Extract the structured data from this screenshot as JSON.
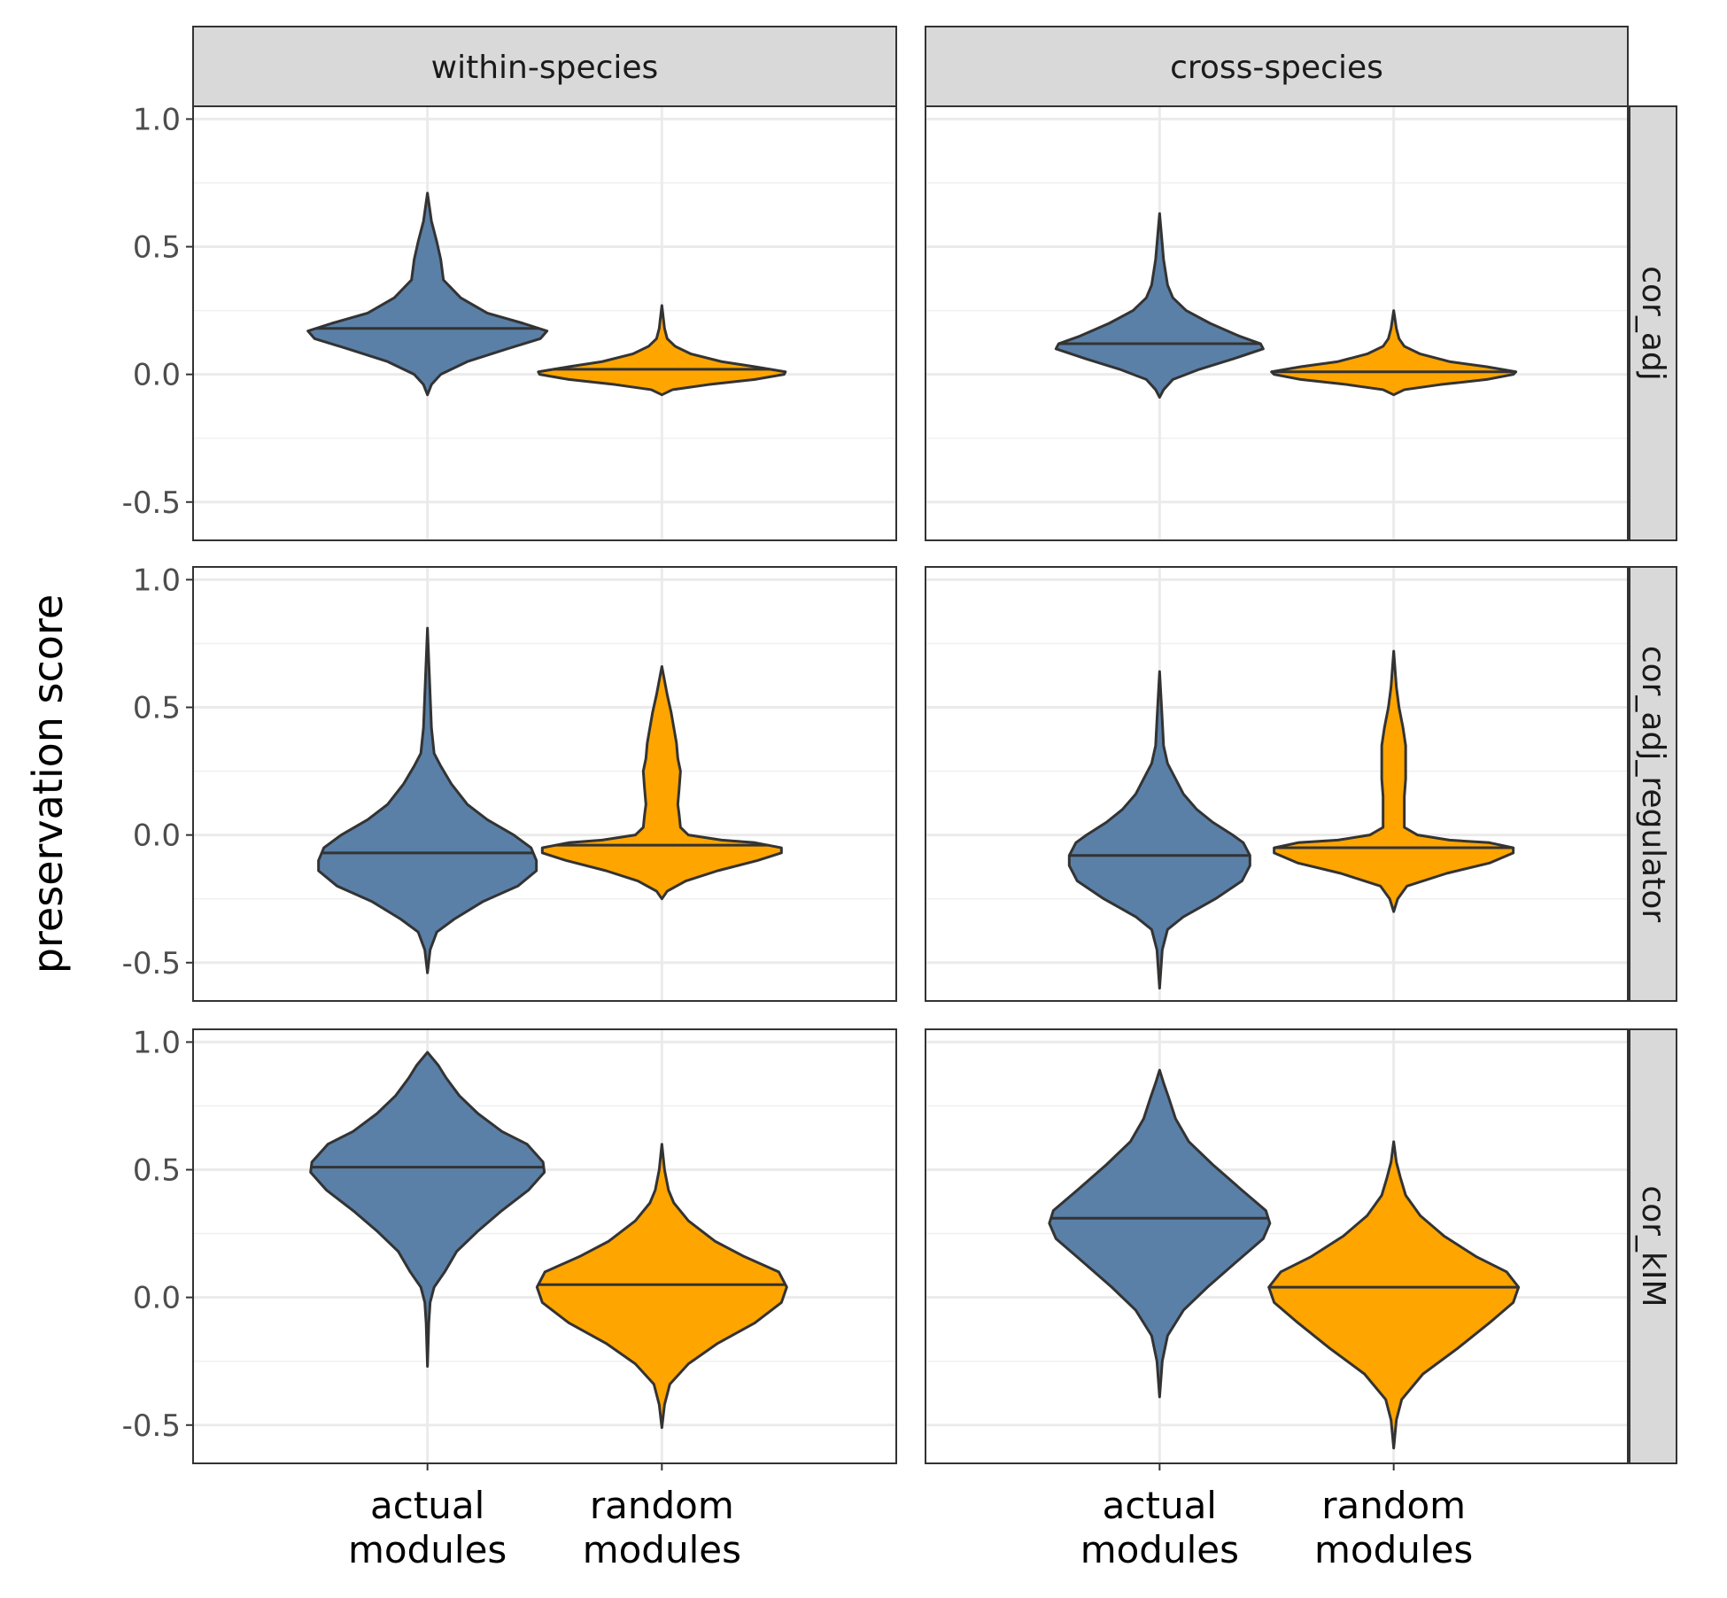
{
  "chart_data": {
    "type": "violin",
    "ylabel": "preservation score",
    "xlabel": "",
    "ylim": [
      -0.65,
      1.05
    ],
    "yticks": [
      -0.5,
      0.0,
      0.5,
      1.0
    ],
    "ytick_labels": [
      "-0.5",
      "0.0",
      "0.5",
      "1.0"
    ],
    "grid": true,
    "legend": "none",
    "columns": [
      "within-species",
      "cross-species"
    ],
    "rows": [
      "cor_adj",
      "cor_adj_regulator",
      "cor_kIM"
    ],
    "categories": [
      {
        "line1": "actual",
        "line2": "modules"
      },
      {
        "line1": "random",
        "line2": "modules"
      }
    ],
    "colors": {
      "actual": "#5a80a8",
      "random": "#ffa500",
      "outline": "#333333",
      "strip": "#d9d9d9"
    },
    "panels": [
      {
        "row": "cor_adj",
        "column": "within-species",
        "violins": [
          {
            "category": "actual modules",
            "min": -0.08,
            "max": 0.71,
            "median": 0.18,
            "profile": [
              [
                -0.08,
                0.0
              ],
              [
                -0.04,
                0.03
              ],
              [
                0.0,
                0.1
              ],
              [
                0.05,
                0.3
              ],
              [
                0.1,
                0.6
              ],
              [
                0.14,
                0.85
              ],
              [
                0.17,
                0.9
              ],
              [
                0.2,
                0.72
              ],
              [
                0.24,
                0.45
              ],
              [
                0.3,
                0.25
              ],
              [
                0.37,
                0.12
              ],
              [
                0.45,
                0.1
              ],
              [
                0.52,
                0.07
              ],
              [
                0.6,
                0.03
              ],
              [
                0.71,
                0.0
              ]
            ]
          },
          {
            "category": "random modules",
            "min": -0.08,
            "max": 0.27,
            "median": 0.02,
            "profile": [
              [
                -0.08,
                0.0
              ],
              [
                -0.06,
                0.08
              ],
              [
                -0.04,
                0.35
              ],
              [
                -0.02,
                0.7
              ],
              [
                0.0,
                0.92
              ],
              [
                0.01,
                0.93
              ],
              [
                0.03,
                0.7
              ],
              [
                0.05,
                0.45
              ],
              [
                0.08,
                0.22
              ],
              [
                0.11,
                0.1
              ],
              [
                0.14,
                0.04
              ],
              [
                0.18,
                0.02
              ],
              [
                0.27,
                0.0
              ]
            ]
          }
        ]
      },
      {
        "row": "cor_adj",
        "column": "cross-species",
        "violins": [
          {
            "category": "actual modules",
            "min": -0.09,
            "max": 0.63,
            "median": 0.12,
            "profile": [
              [
                -0.09,
                0.0
              ],
              [
                -0.06,
                0.03
              ],
              [
                -0.02,
                0.1
              ],
              [
                0.02,
                0.3
              ],
              [
                0.06,
                0.55
              ],
              [
                0.1,
                0.78
              ],
              [
                0.12,
                0.76
              ],
              [
                0.15,
                0.6
              ],
              [
                0.2,
                0.38
              ],
              [
                0.25,
                0.2
              ],
              [
                0.3,
                0.1
              ],
              [
                0.35,
                0.06
              ],
              [
                0.45,
                0.03
              ],
              [
                0.63,
                0.0
              ]
            ]
          },
          {
            "category": "random modules",
            "min": -0.08,
            "max": 0.25,
            "median": 0.01,
            "profile": [
              [
                -0.08,
                0.0
              ],
              [
                -0.06,
                0.08
              ],
              [
                -0.04,
                0.35
              ],
              [
                -0.02,
                0.7
              ],
              [
                0.0,
                0.9
              ],
              [
                0.01,
                0.92
              ],
              [
                0.03,
                0.7
              ],
              [
                0.05,
                0.42
              ],
              [
                0.08,
                0.2
              ],
              [
                0.11,
                0.08
              ],
              [
                0.14,
                0.04
              ],
              [
                0.18,
                0.02
              ],
              [
                0.25,
                0.0
              ]
            ]
          }
        ]
      },
      {
        "row": "cor_adj_regulator",
        "column": "within-species",
        "violins": [
          {
            "category": "actual modules",
            "min": -0.54,
            "max": 0.81,
            "median": -0.07,
            "profile": [
              [
                -0.54,
                0.0
              ],
              [
                -0.45,
                0.02
              ],
              [
                -0.38,
                0.07
              ],
              [
                -0.33,
                0.2
              ],
              [
                -0.26,
                0.42
              ],
              [
                -0.2,
                0.68
              ],
              [
                -0.14,
                0.82
              ],
              [
                -0.1,
                0.82
              ],
              [
                -0.05,
                0.78
              ],
              [
                0.0,
                0.65
              ],
              [
                0.06,
                0.45
              ],
              [
                0.12,
                0.3
              ],
              [
                0.2,
                0.18
              ],
              [
                0.27,
                0.1
              ],
              [
                0.32,
                0.05
              ],
              [
                0.42,
                0.03
              ],
              [
                0.55,
                0.02
              ],
              [
                0.81,
                0.0
              ]
            ]
          },
          {
            "category": "random modules",
            "min": -0.25,
            "max": 0.66,
            "median": -0.04,
            "profile": [
              [
                -0.25,
                0.0
              ],
              [
                -0.22,
                0.04
              ],
              [
                -0.18,
                0.18
              ],
              [
                -0.14,
                0.42
              ],
              [
                -0.1,
                0.72
              ],
              [
                -0.07,
                0.9
              ],
              [
                -0.05,
                0.9
              ],
              [
                -0.03,
                0.7
              ],
              [
                -0.02,
                0.45
              ],
              [
                0.0,
                0.2
              ],
              [
                0.03,
                0.14
              ],
              [
                0.08,
                0.13
              ],
              [
                0.12,
                0.12
              ],
              [
                0.18,
                0.13
              ],
              [
                0.25,
                0.14
              ],
              [
                0.3,
                0.12
              ],
              [
                0.36,
                0.11
              ],
              [
                0.42,
                0.09
              ],
              [
                0.48,
                0.07
              ],
              [
                0.55,
                0.04
              ],
              [
                0.66,
                0.0
              ]
            ]
          }
        ]
      },
      {
        "row": "cor_adj_regulator",
        "column": "cross-species",
        "violins": [
          {
            "category": "actual modules",
            "min": -0.6,
            "max": 0.64,
            "median": -0.08,
            "profile": [
              [
                -0.6,
                0.0
              ],
              [
                -0.45,
                0.02
              ],
              [
                -0.37,
                0.06
              ],
              [
                -0.32,
                0.18
              ],
              [
                -0.25,
                0.42
              ],
              [
                -0.18,
                0.62
              ],
              [
                -0.12,
                0.68
              ],
              [
                -0.08,
                0.68
              ],
              [
                -0.03,
                0.63
              ],
              [
                0.0,
                0.55
              ],
              [
                0.05,
                0.4
              ],
              [
                0.1,
                0.28
              ],
              [
                0.16,
                0.18
              ],
              [
                0.22,
                0.12
              ],
              [
                0.28,
                0.06
              ],
              [
                0.35,
                0.03
              ],
              [
                0.45,
                0.02
              ],
              [
                0.64,
                0.0
              ]
            ]
          },
          {
            "category": "random modules",
            "min": -0.3,
            "max": 0.72,
            "median": -0.05,
            "profile": [
              [
                -0.3,
                0.0
              ],
              [
                -0.25,
                0.03
              ],
              [
                -0.2,
                0.1
              ],
              [
                -0.15,
                0.4
              ],
              [
                -0.11,
                0.72
              ],
              [
                -0.07,
                0.9
              ],
              [
                -0.05,
                0.9
              ],
              [
                -0.03,
                0.72
              ],
              [
                -0.02,
                0.42
              ],
              [
                0.0,
                0.18
              ],
              [
                0.03,
                0.08
              ],
              [
                0.08,
                0.08
              ],
              [
                0.15,
                0.08
              ],
              [
                0.22,
                0.09
              ],
              [
                0.28,
                0.09
              ],
              [
                0.35,
                0.09
              ],
              [
                0.42,
                0.07
              ],
              [
                0.5,
                0.04
              ],
              [
                0.58,
                0.02
              ],
              [
                0.72,
                0.0
              ]
            ]
          }
        ]
      },
      {
        "row": "cor_kIM",
        "column": "within-species",
        "violins": [
          {
            "category": "actual modules",
            "min": -0.27,
            "max": 0.96,
            "median": 0.51,
            "profile": [
              [
                -0.27,
                0.0
              ],
              [
                -0.1,
                0.01
              ],
              [
                -0.02,
                0.02
              ],
              [
                0.04,
                0.05
              ],
              [
                0.1,
                0.13
              ],
              [
                0.18,
                0.22
              ],
              [
                0.26,
                0.38
              ],
              [
                0.34,
                0.56
              ],
              [
                0.42,
                0.76
              ],
              [
                0.49,
                0.88
              ],
              [
                0.53,
                0.87
              ],
              [
                0.6,
                0.75
              ],
              [
                0.65,
                0.56
              ],
              [
                0.72,
                0.38
              ],
              [
                0.79,
                0.24
              ],
              [
                0.86,
                0.14
              ],
              [
                0.91,
                0.08
              ],
              [
                0.96,
                0.0
              ]
            ]
          },
          {
            "category": "random modules",
            "min": -0.51,
            "max": 0.6,
            "median": 0.05,
            "profile": [
              [
                -0.51,
                0.0
              ],
              [
                -0.42,
                0.02
              ],
              [
                -0.34,
                0.06
              ],
              [
                -0.26,
                0.2
              ],
              [
                -0.18,
                0.42
              ],
              [
                -0.1,
                0.7
              ],
              [
                -0.02,
                0.9
              ],
              [
                0.04,
                0.94
              ],
              [
                0.1,
                0.88
              ],
              [
                0.16,
                0.62
              ],
              [
                0.22,
                0.4
              ],
              [
                0.3,
                0.2
              ],
              [
                0.37,
                0.09
              ],
              [
                0.42,
                0.05
              ],
              [
                0.5,
                0.02
              ],
              [
                0.6,
                0.0
              ]
            ]
          }
        ]
      },
      {
        "row": "cor_kIM",
        "column": "cross-species",
        "violins": [
          {
            "category": "actual modules",
            "min": -0.39,
            "max": 0.89,
            "median": 0.31,
            "profile": [
              [
                -0.39,
                0.0
              ],
              [
                -0.25,
                0.02
              ],
              [
                -0.15,
                0.06
              ],
              [
                -0.05,
                0.18
              ],
              [
                0.04,
                0.36
              ],
              [
                0.14,
                0.58
              ],
              [
                0.23,
                0.78
              ],
              [
                0.29,
                0.83
              ],
              [
                0.34,
                0.8
              ],
              [
                0.42,
                0.62
              ],
              [
                0.52,
                0.4
              ],
              [
                0.61,
                0.22
              ],
              [
                0.7,
                0.12
              ],
              [
                0.78,
                0.07
              ],
              [
                0.84,
                0.03
              ],
              [
                0.89,
                0.0
              ]
            ]
          },
          {
            "category": "random modules",
            "min": -0.59,
            "max": 0.61,
            "median": 0.04,
            "profile": [
              [
                -0.59,
                0.0
              ],
              [
                -0.48,
                0.02
              ],
              [
                -0.4,
                0.06
              ],
              [
                -0.3,
                0.22
              ],
              [
                -0.2,
                0.48
              ],
              [
                -0.1,
                0.72
              ],
              [
                -0.02,
                0.9
              ],
              [
                0.04,
                0.94
              ],
              [
                0.1,
                0.85
              ],
              [
                0.16,
                0.62
              ],
              [
                0.24,
                0.38
              ],
              [
                0.32,
                0.2
              ],
              [
                0.4,
                0.09
              ],
              [
                0.47,
                0.05
              ],
              [
                0.53,
                0.02
              ],
              [
                0.61,
                0.0
              ]
            ]
          }
        ]
      }
    ]
  }
}
